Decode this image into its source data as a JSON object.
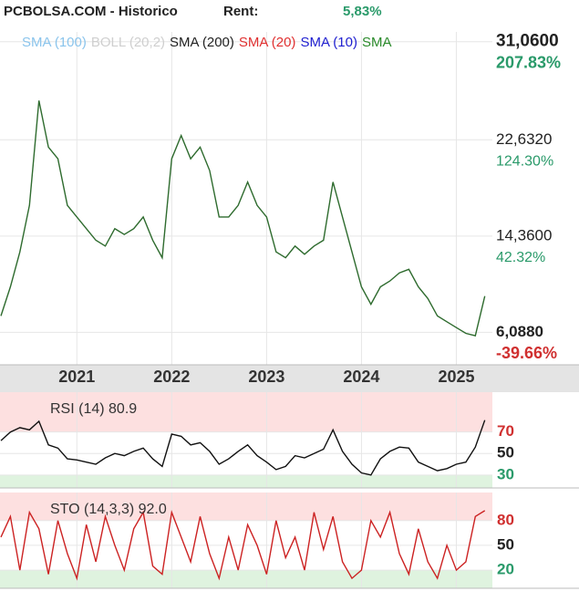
{
  "header": {
    "title": "PCBOLSA.COM - Historico",
    "rent_label": "Rent:",
    "rent_value": "5,83%"
  },
  "chart_data": [
    {
      "type": "line",
      "legend": [
        {
          "name": "SMA (100)",
          "color": "#8ac4ec"
        },
        {
          "name": "BOLL (20,2)",
          "color": "#cfcfcf"
        },
        {
          "name": "SMA (200)",
          "color": "#222222"
        },
        {
          "name": "SMA (20)",
          "color": "#e03030"
        },
        {
          "name": "SMA (10)",
          "color": "#2020d0"
        },
        {
          "name": "SMA",
          "color": "#2a8a2a"
        }
      ],
      "color": "#2e6b2e",
      "x": [
        2020.2,
        2020.3,
        2020.4,
        2020.5,
        2020.6,
        2020.7,
        2020.8,
        2020.9,
        2021.0,
        2021.1,
        2021.2,
        2021.3,
        2021.4,
        2021.5,
        2021.6,
        2021.7,
        2021.8,
        2021.9,
        2022.0,
        2022.1,
        2022.2,
        2022.3,
        2022.4,
        2022.5,
        2022.6,
        2022.7,
        2022.8,
        2022.9,
        2023.0,
        2023.1,
        2023.2,
        2023.3,
        2023.4,
        2023.5,
        2023.6,
        2023.7,
        2023.8,
        2023.9,
        2024.0,
        2024.1,
        2024.2,
        2024.3,
        2024.4,
        2024.5,
        2024.6,
        2024.7,
        2024.8,
        2024.9,
        2025.0,
        2025.1,
        2025.2,
        2025.3
      ],
      "values": [
        7.5,
        10,
        13,
        17,
        26,
        22,
        21,
        17,
        16,
        15,
        14,
        13.5,
        15,
        14.5,
        15,
        16,
        14,
        12.5,
        21,
        23,
        21,
        22,
        20,
        16,
        16,
        17,
        19,
        17,
        16,
        13,
        12.5,
        13.5,
        12.8,
        13.5,
        14,
        19,
        16,
        13,
        10,
        8.5,
        10,
        10.5,
        11.2,
        11.5,
        10,
        9,
        7.5,
        7,
        6.5,
        6,
        5.8,
        9.2
      ],
      "xlim": [
        2020.19,
        2025.38
      ],
      "xticks": [
        2021,
        2022,
        2023,
        2024,
        2025
      ],
      "ylim": [
        3.3,
        31.9
      ],
      "yticks": [
        {
          "value": 31.06,
          "label": "31,0600"
        },
        {
          "value": 22.632,
          "label": "22,6320"
        },
        {
          "value": 14.36,
          "label": "14,3600"
        },
        {
          "value": 6.088,
          "label": "6,0880"
        }
      ],
      "y_pct_labels": [
        "207.83%",
        "124.30%",
        "42.32%",
        "-39.66%"
      ],
      "y_pct_colors": [
        "#2a9a6a",
        "#2a9a6a",
        "#2a9a6a",
        "#d03030"
      ]
    },
    {
      "type": "line",
      "title": "RSI (14) 80.9",
      "color": "#111111",
      "values": [
        62,
        70,
        74,
        72,
        80,
        58,
        55,
        45,
        44,
        42,
        40,
        46,
        50,
        48,
        52,
        55,
        45,
        38,
        68,
        66,
        58,
        60,
        52,
        40,
        45,
        52,
        58,
        48,
        42,
        35,
        38,
        48,
        46,
        50,
        54,
        72,
        52,
        40,
        32,
        30,
        45,
        52,
        56,
        55,
        42,
        38,
        34,
        36,
        40,
        42,
        56,
        81
      ],
      "ylim": [
        18,
        107
      ],
      "yticks": [
        70,
        50,
        30
      ],
      "ytick_colors": [
        "#d03030",
        "#222222",
        "#2a9a6a"
      ],
      "bands": [
        {
          "from": 70,
          "to": 107,
          "color": "#fde0e0"
        },
        {
          "from": 18,
          "to": 30,
          "color": "#dff3df"
        }
      ]
    },
    {
      "type": "line",
      "title": "STO (14,3,3) 92.0",
      "color": "#cc2222",
      "values": [
        60,
        85,
        20,
        90,
        70,
        15,
        80,
        40,
        10,
        75,
        30,
        85,
        50,
        20,
        70,
        90,
        25,
        15,
        90,
        60,
        30,
        85,
        40,
        10,
        60,
        20,
        75,
        50,
        15,
        80,
        35,
        60,
        20,
        90,
        45,
        85,
        30,
        10,
        20,
        80,
        60,
        90,
        40,
        15,
        70,
        30,
        10,
        50,
        20,
        30,
        85,
        92
      ],
      "ylim": [
        -2,
        114
      ],
      "yticks": [
        80,
        50,
        20
      ],
      "ytick_colors": [
        "#d03030",
        "#222222",
        "#2a9a6a"
      ],
      "bands": [
        {
          "from": 80,
          "to": 114,
          "color": "#fde0e0"
        },
        {
          "from": -2,
          "to": 20,
          "color": "#dff3df"
        }
      ]
    }
  ]
}
